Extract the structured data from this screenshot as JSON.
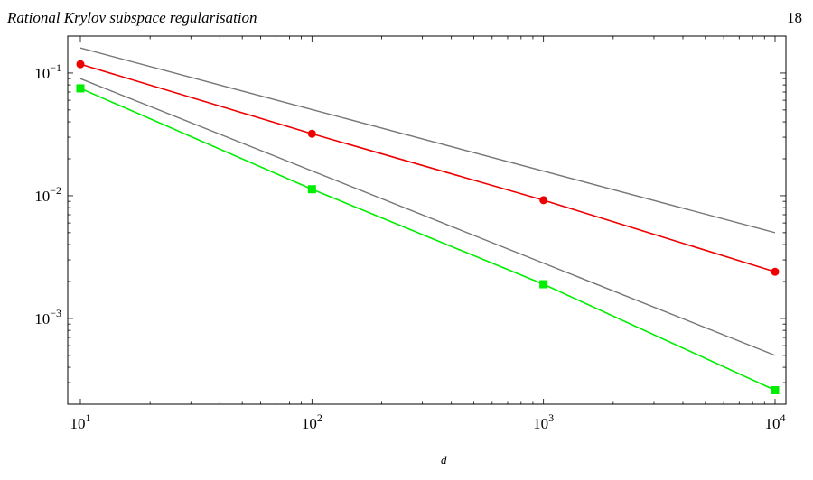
{
  "page": {
    "running_title": "Rational Krylov subspace regularisation",
    "page_number": "18",
    "partial_label": "d"
  },
  "colors": {
    "red_series": "#ee0000",
    "green_series": "#00ee00",
    "reference_lines": "#777777",
    "axis": "#000000"
  },
  "chart_data": {
    "type": "line",
    "title": "",
    "xlabel": "",
    "ylabel": "",
    "x_scale": "log",
    "y_scale": "log",
    "xlim": [
      10,
      10000
    ],
    "ylim": [
      0.0002,
      0.2
    ],
    "grid": false,
    "x_ticks": [
      {
        "value": 10,
        "base": "10",
        "exp": "1"
      },
      {
        "value": 100,
        "base": "10",
        "exp": "2"
      },
      {
        "value": 1000,
        "base": "10",
        "exp": "3"
      },
      {
        "value": 10000,
        "base": "10",
        "exp": "4"
      }
    ],
    "y_ticks": [
      {
        "value": 0.1,
        "base": "10",
        "exp": "−1"
      },
      {
        "value": 0.01,
        "base": "10",
        "exp": "−2"
      },
      {
        "value": 0.001,
        "base": "10",
        "exp": "−3"
      }
    ],
    "series": [
      {
        "marker": "circle",
        "color": "#ee0000",
        "x": [
          10,
          100,
          1000,
          10000
        ],
        "y": [
          0.118,
          0.032,
          0.0092,
          0.0024
        ]
      },
      {
        "marker": "square",
        "color": "#00ee00",
        "x": [
          10,
          100,
          1000,
          10000
        ],
        "y": [
          0.075,
          0.0113,
          0.0019,
          0.00026
        ]
      }
    ],
    "reference_lines": [
      {
        "color": "#777777",
        "x": [
          10,
          10000
        ],
        "y": [
          0.16,
          0.005
        ]
      },
      {
        "color": "#777777",
        "x": [
          10,
          10000
        ],
        "y": [
          0.09,
          0.0005
        ]
      }
    ]
  }
}
